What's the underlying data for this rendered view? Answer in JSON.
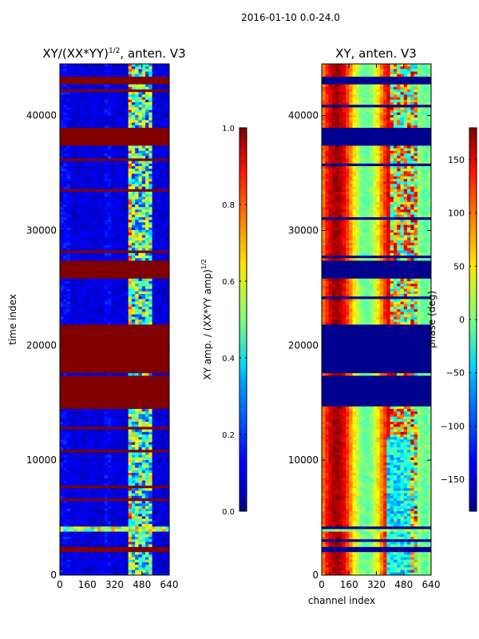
{
  "suptitle": "2016-01-10 0.0-24.0",
  "chart_data": [
    {
      "type": "heatmap",
      "title_main": "XY/(XX*YY)",
      "title_sup": "1/2",
      "title_rest": ", anten. V3",
      "xlabel": "",
      "ylabel": "time index",
      "xlim": [
        0,
        640
      ],
      "ylim": [
        0,
        44500
      ],
      "xticks": [
        "0",
        "160",
        "320",
        "480",
        "640"
      ],
      "yticks": [
        "0",
        "10000",
        "20000",
        "30000",
        "40000"
      ],
      "colorbar": {
        "label_main": "XY amp. / (XX*YY amp)",
        "label_sup": "1/2",
        "range": [
          0.0,
          1.0
        ],
        "ticks": [
          "0.0",
          "0.2",
          "0.4",
          "0.6",
          "0.8",
          "1.0"
        ]
      },
      "saturated_bands": [
        [
          1900,
          2400
        ],
        [
          14600,
          17300
        ],
        [
          17600,
          21800
        ],
        [
          25900,
          27300
        ],
        [
          37400,
          39000
        ],
        [
          42800,
          43400
        ]
      ]
    },
    {
      "type": "heatmap",
      "title": "XY, anten. V3",
      "xlabel": "channel index",
      "ylabel": "",
      "xlim": [
        0,
        640
      ],
      "ylim": [
        0,
        44500
      ],
      "xticks": [
        "0",
        "160",
        "320",
        "480",
        "640"
      ],
      "yticks": [
        "0",
        "10000",
        "20000",
        "30000",
        "40000"
      ],
      "colorbar": {
        "label": "phase (deg)",
        "range": [
          -180,
          180
        ],
        "ticks": [
          "150",
          "100",
          "50",
          "0",
          "−50",
          "−100",
          "−150"
        ]
      },
      "masked_bands": [
        [
          1900,
          2400
        ],
        [
          14600,
          17300
        ],
        [
          17600,
          21800
        ],
        [
          25900,
          27300
        ],
        [
          37400,
          39000
        ],
        [
          42800,
          43400
        ]
      ]
    }
  ],
  "colors": {
    "saturated": "#800000",
    "masked": "#00008f",
    "low": "#0000b4"
  }
}
